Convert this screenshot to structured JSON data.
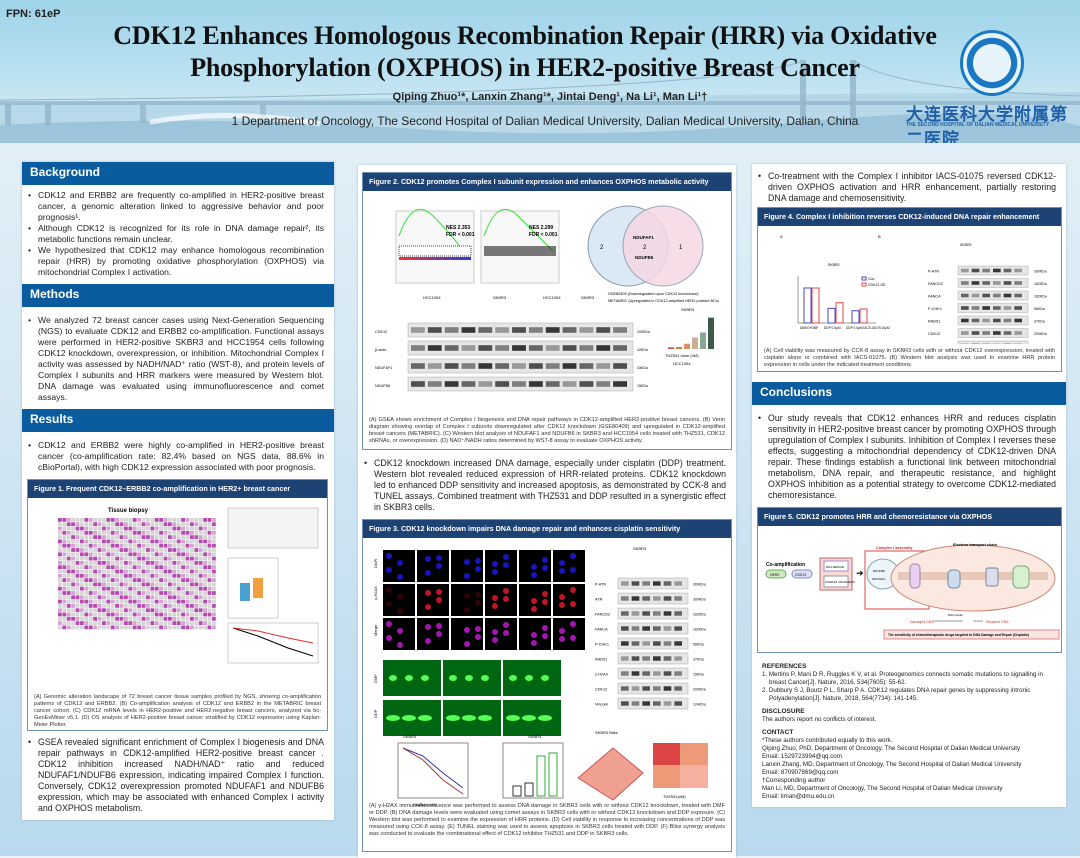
{
  "header": {
    "fpn": "FPN: 61eP",
    "title_line1": "CDK12 Enhances Homologous Recombination Repair (HRR) via Oxidative",
    "title_line2": "Phosphorylation (OXPHOS) in HER2-positive Breast Cancer",
    "authors": "Qiping Zhuo¹*, Lanxin Zhang¹*, Jintai Deng¹, Na Li¹, Man Li¹†",
    "affiliation": "1 Department of Oncology, The Second Hospital of Dalian Medical University, Dalian Medical University, Dalian, China",
    "logo_cn": "大连医科大学附属第二医院",
    "logo_en": "THE SECOND HOSPITAL OF DALIAN MEDICAL UNIVERSITY"
  },
  "left": {
    "background_title": "Background",
    "background": [
      "CDK12 and ERBB2 are frequently co-amplified in HER2-positive breast cancer, a genomic alteration linked to aggressive behavior and poor prognosis¹.",
      "Although CDK12 is recognized for its role in DNA damage repair², its metabolic functions remain unclear.",
      "We hypothesized that CDK12 may enhance homologous recombination repair (HRR) by promoting oxidative phosphorylation (OXPHOS) via mitochondrial Complex I activation."
    ],
    "methods_title": "Methods",
    "methods": "We analyzed 72 breast cancer cases using Next-Generation Sequencing (NGS) to evaluate CDK12 and ERBB2 co-amplification. Functional assays were performed in HER2-positive SKBR3 and HCC1954 cells following CDK12 knockdown, overexpression, or inhibition. Mitochondrial Complex I activity was assessed by NADH/NAD⁺ ratio (WST-8), and protein levels of Complex I subunits and HRR markers were measured by Western blot. DNA damage was evaluated using immunofluorescence and comet assays.",
    "results_title": "Results",
    "results1": "CDK12 and ERBB2 were highly co-amplified in HER2-positive breast cancer (co-amplification rate: 82.4% based on NGS data, 88.6% in cBioPortal), with high CDK12 expression associated with poor prognosis.",
    "fig1_title": "Figure 1. Frequent CDK12–ERBB2 co-amplification in HER2+ breast cancer",
    "fig1_panel_title": "Tissue biopsy",
    "fig1_caption": "(A) Genomic alteration landscape of 72 breast cancer tissue samples profiled by NGS, showing co-amplification patterns of CDK12 and ERBB2. (B) Co-amplification analysis of CDK12 and ERBB2 in the METABRIC breast cancer cohort. (C) CDK12 mRNA levels in HER2-positive and HER2-negative breast cancers, analyzed via bc-GenExMiner v5.1. (D) OS analysis of HER2-positive breast cancer stratified by CDK12 expression using Kaplan-Meier Plotter.",
    "results2": "GSEA revealed significant enrichment of Complex I biogenesis and DNA repair pathways in CDK12-amplified HER2-positive breast cancer . CDK12 inhibition increased NADH/NAD⁺ ratio and reduced NDUFAF1/NDUFB6 expression, indicating impaired Complex I function. Conversely, CDK12 overexpression promoted NDUFAF1 and NDUFB6 expression, which may be associated with enhanced Complex I activity and OXPHOS metabolism."
  },
  "middle": {
    "fig2_title": "Figure 2. CDK12 promotes Complex I subunit expression and enhances OXPHOS metabolic activity",
    "fig2_labels": {
      "nes1": "NES 2.353",
      "fdr1": "FDR < 0.001",
      "nes2": "NES 2.299",
      "fdr2": "FDR < 0.001",
      "venn_left": "2",
      "venn_mid": "2",
      "venn_right": "1",
      "gene1": "NDUFAF1",
      "gene2": "NDUFB6",
      "legend1": "GSE80409 (Downregulated upon CDK12 knockdown)",
      "legend2": "METABRIC (Upregulated in CDK12-amplified HER2-positive BCs)",
      "cell1": "HCC1954",
      "cell2": "SKBR3",
      "cell3": "HCC1954",
      "cell4": "SKBR3",
      "d_title": "SKBR3",
      "d_title2": "HCC1954",
      "d_xlabel": "THZ531 dose (nM)",
      "blot_rows": [
        "CDK12",
        "β-actin",
        "NDUFAF1",
        "NDUFB6"
      ],
      "blot_kda": [
        "200KDa",
        "42KDa",
        "33KDa",
        "15KDa"
      ]
    },
    "fig2_caption": "(A) GSEA shows enrichment of Complex I biogenesis and DNA repair pathways in CDK12-amplified HER2-positive breast cancers. (B) Venn diagram showing overlap of Complex I subunits downregulated after CDK12 knockdown (GSE80409) and upregulated in CDK12-amplified breast cancers (METABRIC). (C) Western blot analysis of NDUFAF1 and NDUFB6 in SKBR3 and HCC1954 cells treated with THZ531, CDK12 shRNAs, or overexpression. (D) NAD⁺/NADH ratios determined by WST-8 assay to evaluate OXPHOS activity.",
    "results3": "CDK12 knockdown increased DNA damage, especially under cisplatin (DDP) treatment. Western blot revealed reduced expression of HRR-related proteins. CDK12 knockdown led to enhanced DDP sensitivity and increased apoptosis, as demonstrated by CCK-8 and TUNEL assays. Combined treatment with THZ531 and DDP resulted in a synergistic effect in SKBR3 cells.",
    "fig3_title": "Figure  3. CDK12 knockdown impairs DNA damage repair and enhances cisplatin sensitivity",
    "fig3_labels": {
      "row1": "DAPI",
      "row2": "γ-H2AX",
      "row3": "Merge",
      "row4": "DMF",
      "row5": "DDP",
      "c_title": "SKBR3",
      "blot_rows": [
        "P-ATR",
        "ATR",
        "FANCD2",
        "FANCA",
        "P-CHK1",
        "RAD51",
        "γ-H2AX",
        "CDK12",
        "Vinculin"
      ],
      "blot_kda": [
        "300KDa",
        "300KDa",
        "162KDa",
        "162KDa",
        "56KDa",
        "37KDa",
        "15KDa",
        "200KDa",
        "124KDa"
      ],
      "d_title": "SKBR3",
      "e_title": "SKBR3",
      "f_title": "SKBR3 Bliss",
      "d_xlabel": "Cisplatin(uM)",
      "f_xlabel": "THZ531(nM)"
    },
    "fig3_caption": "(A) γ-H2AX immunofluorescence was performed to assess DNA damage in SKBR3 cells with or without CDK12 knockdown, treated with DMF or DDP. (B) DNA damage levels were evaluated using comet assays in SKBR3 cells with or without CDK12 knockdown and DDP exposure. (C) Western blot was performed to examine the expression of HRR proteins. (D) Cell viability in response to increasing concentrations of DDP was measured using CCK-8 assay. (E) TUNEL staining was used to assess apoptosis in SKBR3 cells treated with DDP. (F) Bliss synergy analysis was conducted to evaluate the combinational effect of CDK12 inhibitor THZ531 and DDP in SKBR3 cells."
  },
  "right": {
    "results4": "Co-treatment with the Complex I inhibitor IACS-01075 reversed CDK12-driven OXPHOS activation and HRR enhancement, partially restoring DNA damage and chemosensitivity.",
    "fig4_title": "Figure  4. Complex I inhibition reverses CDK12-induced DNA repair enhancement",
    "fig4_labels": {
      "a": "A",
      "b": "B",
      "chart_title": "SKBR3",
      "legend1": "Con",
      "legend2": "CDK12-OE",
      "x1": "DMSO+DMF",
      "x2": "DDP 0.5μM",
      "x3": "DDP 0.5μM IACS-01075 10μM",
      "ylabel": "Cell viability(%)",
      "blot_title": "SKBR3",
      "blot_rows": [
        "P-ATR",
        "FANCD2",
        "FANCA",
        "P-CHK1",
        "RAD51",
        "CDK12",
        "Vinculin"
      ],
      "blot_kda": [
        "300KDa",
        "162KDa",
        "162KDa",
        "56KDa",
        "37KDa",
        "200KDa",
        "124KDa"
      ]
    },
    "fig4_caption": "(A) Cell viability was measured by CCK-8 assay in SKBR3 cells with or without CDK12 overexpression, treated with cisplatin alone or combined with IACS-01075. (B) Western blot analysis was used to examine HRR protein expression in cells under the indicated treatment conditions.",
    "conclusions_title": "Conclusions",
    "conclusions": "Our study reveals that CDK12 enhances HRR and reduces cisplatin sensitivity in HER2-positive breast cancer by promoting OXPHOS through upregulation of Complex I subunits. Inhibition of Complex I reverses these effects, suggesting a mitochondrial dependency of CDK12-driven DNA repair. These findings establish a functional link between mitochondrial metabolism, DNA repair, and therapeutic resistance, and highlight OXPHOS inhibition as a potential strategy to overcome CDK12-mediated chemoresistance.",
    "fig5_title": "Figure  5. CDK12 promotes HRR and chemoresistance via OXPHOS",
    "fig5_labels": {
      "coamp": "Co-amplification",
      "her2": "HER2",
      "cdk12": "CDK12",
      "dna_repair": "DNA REPAIR",
      "complex": "COMPLEX I BIOGENESIS",
      "assembly": "Complex I assembly",
      "etc": "Electron transport chain",
      "ndufb6": "NDUFB6",
      "ndufaf1": "NDUFAF1",
      "damaged": "Damaged DNA",
      "repair": "DNA repair",
      "repaired": "Repaired DNA",
      "bottom": "The sensitivity of chemotherapeutic drugs targeted to DNA Damage and Repair (Cisplatin)"
    },
    "references_title": "REFERENCES",
    "references": [
      "1.  Mertins P, Mani D R, Ruggles K V, et al. Proteogenomics connects somatic mutations to signalling in breast Cancer[J]. Nature, 2016, 534(7605): 55-62.",
      "2.  Dubbury S J, Boutz P L, Sharp P A. CDK12 regulates DNA repair genes by suppressing intronic Polyadenylation[J]. Nature, 2018, 564(7734): 141-145."
    ],
    "disclosure_title": "DISCLOSURE",
    "disclosure": "The authors report no conflicts of interest.",
    "contact_title": "CONTACT",
    "contact": [
      "*These authors contributed equally to this work.",
      "Qiping Zhuo, PhD, Department of Oncology, The Second Hospital of Dalian Medical University",
      "Email: 1529723994@qq.com",
      "Lanxin Zhang, MD, Department of Oncology, The Second Hospital of Dalian Medical University",
      "Email: 870907869@qq.com",
      "†Corresponding author",
      "Man Li, MD, Department of Oncology, The Second Hospital of Dalian Medical University",
      "Email: liman@dmu.edu.cn"
    ]
  },
  "colors": {
    "section_header": "#0b5c9e",
    "figure_header": "#1d4374",
    "background": "#cfe4f2"
  }
}
